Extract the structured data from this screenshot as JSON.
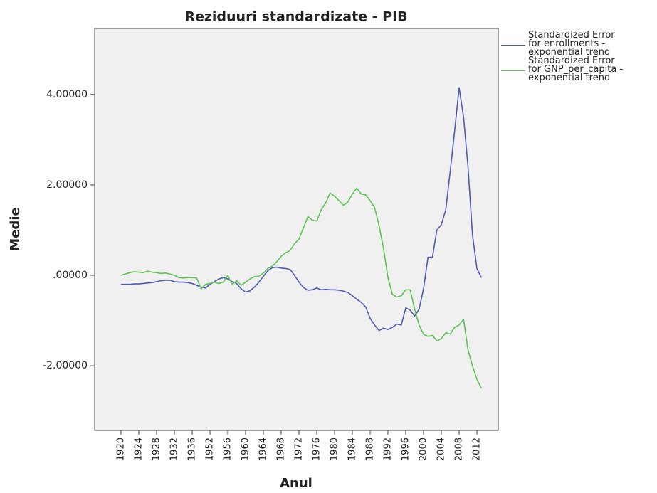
{
  "chart_data": {
    "type": "line",
    "title": "Reziduuri standardizate - PIB",
    "x_label": "Anul",
    "y_label": "Medie",
    "categories": [
      1920,
      null,
      null,
      null,
      1924,
      null,
      null,
      null,
      1928,
      null,
      null,
      null,
      1932,
      null,
      null,
      null,
      1936,
      null,
      null,
      null,
      1952,
      null,
      null,
      null,
      1956,
      null,
      null,
      null,
      1960,
      null,
      null,
      null,
      1964,
      null,
      null,
      null,
      1968,
      null,
      null,
      null,
      1972,
      null,
      null,
      null,
      1976,
      null,
      null,
      null,
      1980,
      null,
      null,
      null,
      1984,
      null,
      null,
      null,
      1988,
      null,
      null,
      null,
      1992,
      null,
      null,
      null,
      1996,
      null,
      null,
      null,
      2000,
      null,
      null,
      null,
      2004,
      null,
      null,
      null,
      2008,
      null,
      null,
      null,
      2012,
      null
    ],
    "series": [
      {
        "name": "Standardized Error for enrollments - exponential trend",
        "color": "#4f5bb5",
        "values": [
          -0.2,
          -0.2,
          -0.2,
          -0.19,
          -0.19,
          -0.18,
          -0.17,
          -0.16,
          -0.14,
          -0.12,
          -0.11,
          -0.11,
          -0.14,
          -0.15,
          -0.15,
          -0.16,
          -0.18,
          -0.22,
          -0.26,
          -0.28,
          -0.2,
          -0.14,
          -0.08,
          -0.05,
          -0.08,
          -0.14,
          -0.18,
          -0.3,
          -0.37,
          -0.34,
          -0.26,
          -0.15,
          -0.02,
          0.1,
          0.17,
          0.18,
          0.16,
          0.15,
          0.13,
          0.0,
          -0.15,
          -0.27,
          -0.33,
          -0.32,
          -0.28,
          -0.32,
          -0.31,
          -0.32,
          -0.32,
          -0.33,
          -0.35,
          -0.38,
          -0.45,
          -0.53,
          -0.6,
          -0.7,
          -0.95,
          -1.1,
          -1.22,
          -1.17,
          -1.2,
          -1.15,
          -1.08,
          -1.1,
          -0.72,
          -0.77,
          -0.9,
          -0.75,
          -0.3,
          0.4,
          0.4,
          1.0,
          1.12,
          1.45,
          2.3,
          3.2,
          4.15,
          3.5,
          2.4,
          0.9,
          0.15,
          -0.05
        ]
      },
      {
        "name": "Standardized Error for GNP_per_capita - exponential trend",
        "color": "#5ec255",
        "values": [
          0.0,
          0.03,
          0.06,
          0.08,
          0.07,
          0.06,
          0.09,
          0.07,
          0.06,
          0.04,
          0.05,
          0.03,
          0.0,
          -0.05,
          -0.06,
          -0.05,
          -0.05,
          -0.06,
          -0.3,
          -0.2,
          -0.18,
          -0.15,
          -0.18,
          -0.15,
          0.0,
          -0.2,
          -0.12,
          -0.22,
          -0.15,
          -0.08,
          -0.03,
          -0.02,
          0.05,
          0.15,
          0.2,
          0.3,
          0.42,
          0.5,
          0.55,
          0.7,
          0.8,
          1.05,
          1.3,
          1.22,
          1.2,
          1.45,
          1.6,
          1.82,
          1.75,
          1.65,
          1.55,
          1.62,
          1.8,
          1.93,
          1.8,
          1.78,
          1.65,
          1.5,
          1.1,
          0.6,
          -0.05,
          -0.42,
          -0.48,
          -0.45,
          -0.32,
          -0.32,
          -0.75,
          -1.1,
          -1.3,
          -1.35,
          -1.33,
          -1.45,
          -1.4,
          -1.27,
          -1.3,
          -1.15,
          -1.1,
          -0.97,
          -1.65,
          -2.0,
          -2.3,
          -2.5
        ]
      }
    ],
    "ylim": [
      -3.43,
      5.46
    ],
    "yticks": [
      {
        "value": -2,
        "label": "-2.00000"
      },
      {
        "value": 0,
        "label": ".00000"
      },
      {
        "value": 2,
        "label": "2.00000"
      },
      {
        "value": 4,
        "label": "4.00000"
      }
    ],
    "grid": false,
    "legend": "right"
  }
}
